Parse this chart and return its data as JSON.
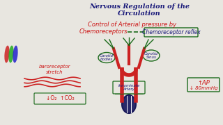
{
  "bg_color": "#e8e6e0",
  "title_line1": "Nervous Regulation of the",
  "title_line2": "Circulation",
  "title_color": "#1a1a7a",
  "subtitle1": "Control of Arterial pressure by",
  "subtitle2": "Chemoreceptors",
  "subtitle3": "Chemoreceptor",
  "subtitle3b": "reflex",
  "subtitle_color": "#cc1111",
  "subtitle_blue": "#1a1a7a",
  "green_color": "#1a6a1a",
  "baro_text1": "baroreceptor",
  "baro_text2": "stretch",
  "baro_color": "#cc1111",
  "carotid_body_text": "Carotid\nbodies",
  "carotid_sinus_text": "Carotid\nSinus",
  "innominate_text": "Innominate\nArtery",
  "ap_text1": "↑AP",
  "ap_text2": "↓ 80mmHg",
  "lo2_text": "↓O₂  ↑CO₂",
  "vessel_color": "#cc2222",
  "nerve_color_green": "#1a6a1a",
  "heart_outline": "#1a1a5a",
  "heart_fill": "#2a2a6a"
}
